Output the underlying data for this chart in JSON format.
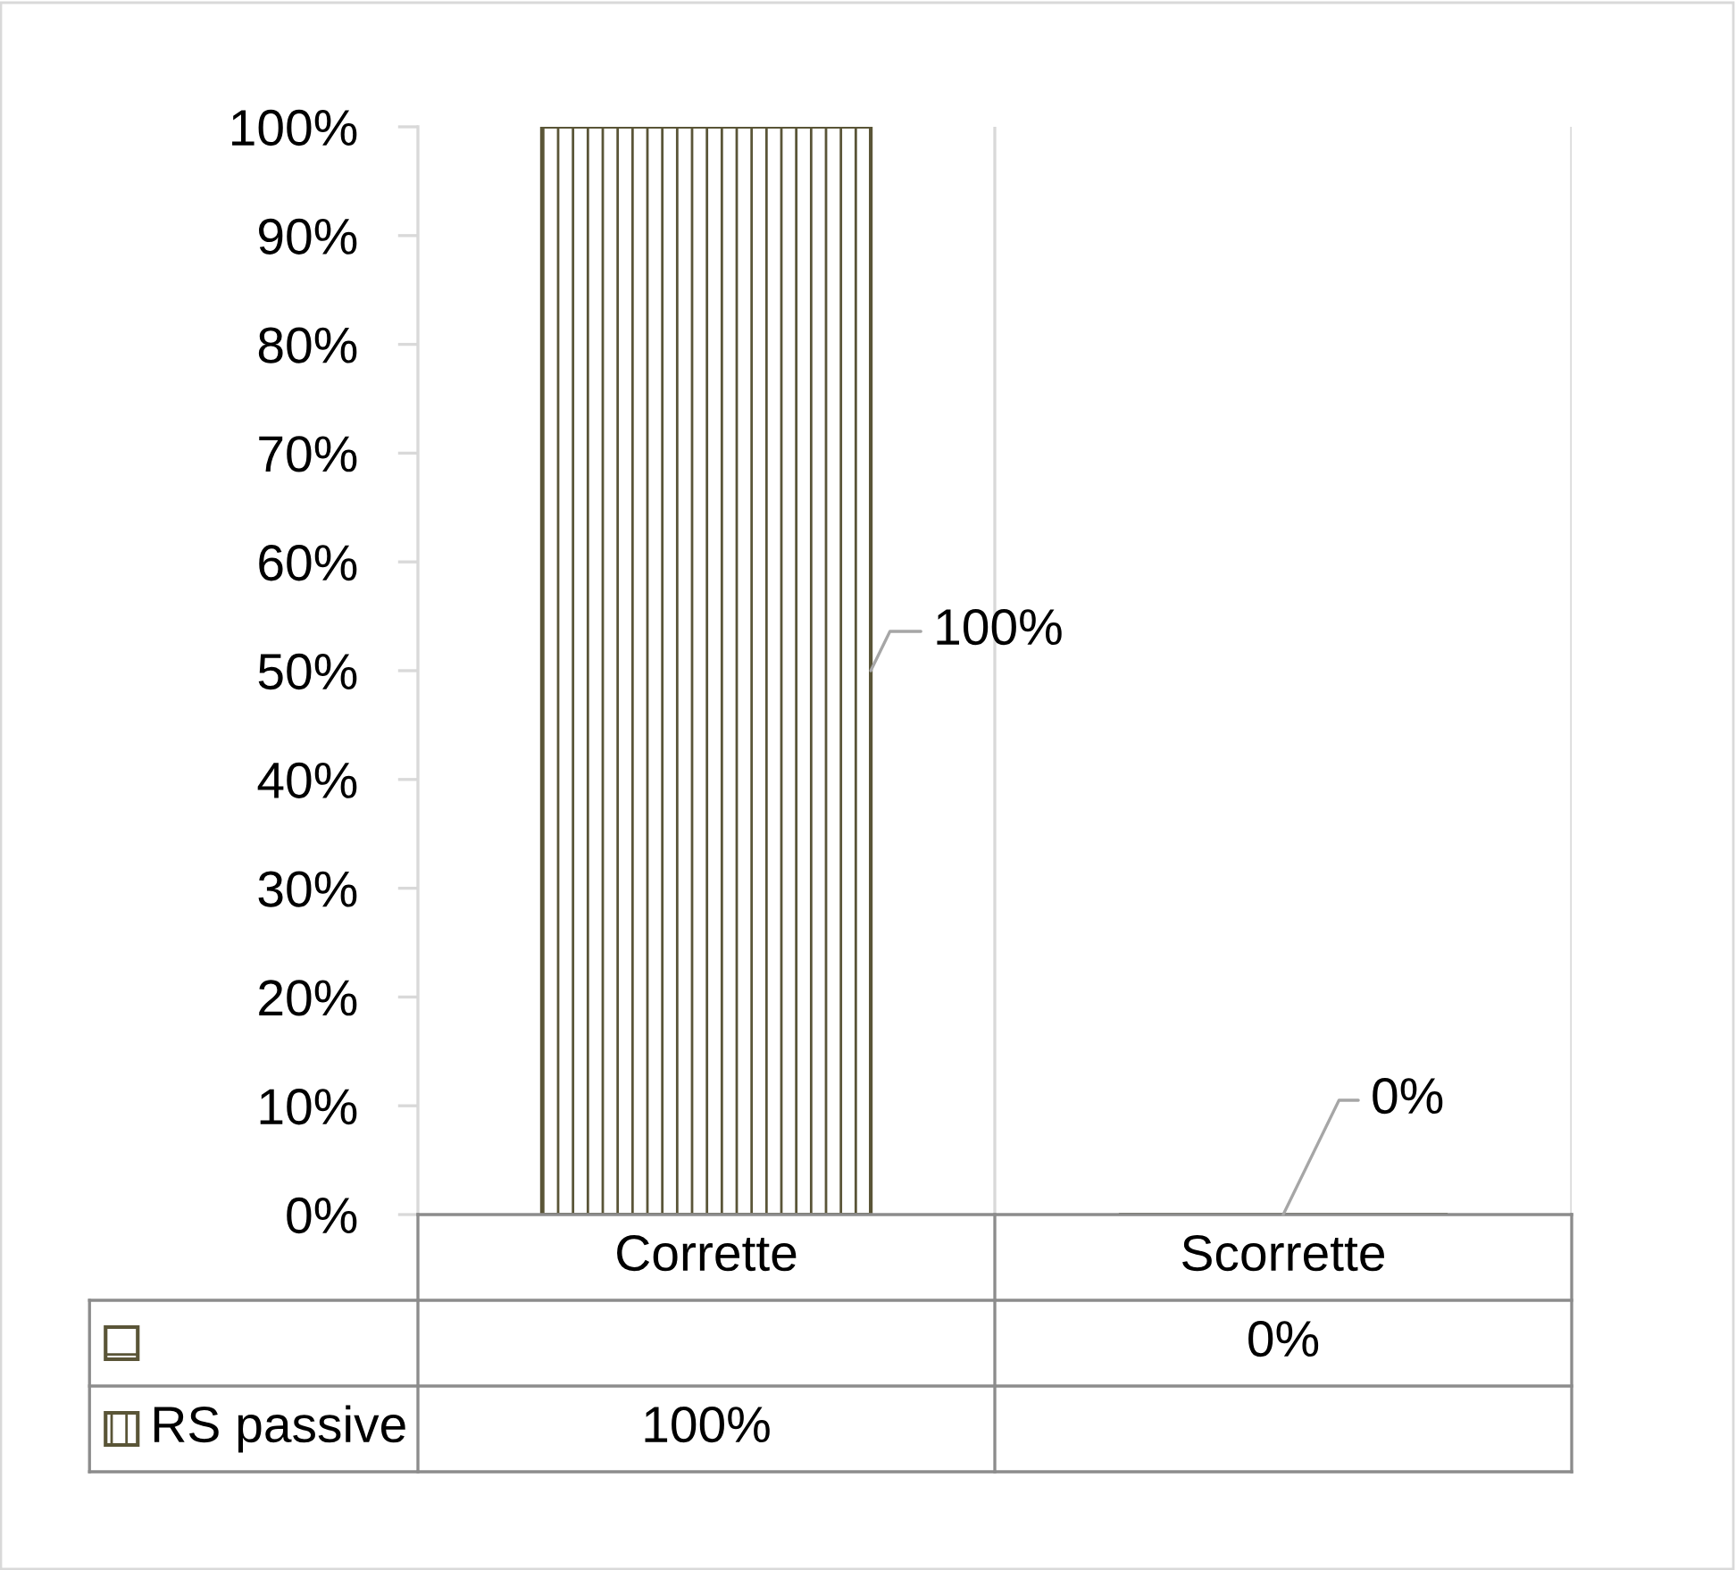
{
  "chart_data": {
    "type": "bar",
    "stacked": true,
    "categories": [
      "Corrette",
      "Scorrette"
    ],
    "series": [
      {
        "color": "#5a5537",
        "values": [
          null,
          0
        ],
        "value_labels": [
          null,
          "0%"
        ]
      },
      {
        "name": "RS passive",
        "color": "#5a5537",
        "values": [
          100,
          null
        ],
        "value_labels": [
          "100%",
          null
        ]
      }
    ],
    "ylim": [
      0,
      100
    ],
    "yticks": [
      {
        "value": 0,
        "label": "0%"
      },
      {
        "value": 10,
        "label": "10%"
      },
      {
        "value": 20,
        "label": "20%"
      },
      {
        "value": 30,
        "label": "30%"
      },
      {
        "value": 40,
        "label": "40%"
      },
      {
        "value": 50,
        "label": "50%"
      },
      {
        "value": 60,
        "label": "60%"
      },
      {
        "value": 70,
        "label": "70%"
      },
      {
        "value": 80,
        "label": "80%"
      },
      {
        "value": 90,
        "label": "90%"
      },
      {
        "value": 100,
        "label": "100%"
      }
    ],
    "grid": "x",
    "legend": "bottom"
  }
}
